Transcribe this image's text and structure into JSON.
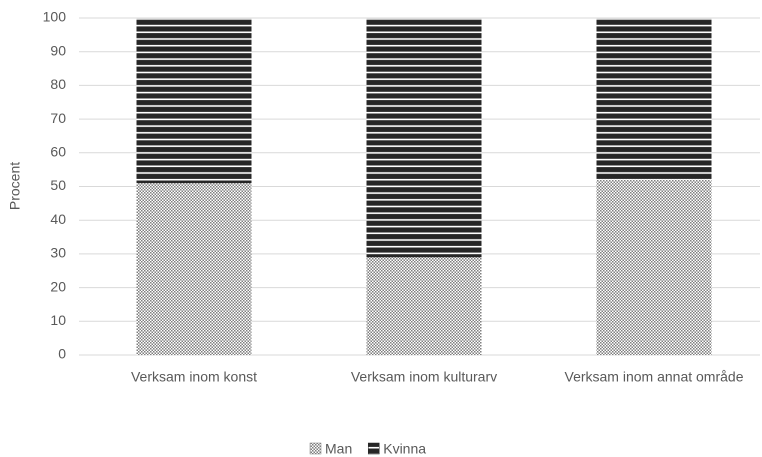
{
  "chart_data": {
    "type": "stacked_bar",
    "y_label": "Procent",
    "categories": [
      "Verksam inom konst",
      "Verksam inom kulturarv",
      "Verksam inom annat område"
    ],
    "series": [
      {
        "name": "Man",
        "color": "#7f7f7f",
        "values": [
          51,
          29,
          52
        ]
      },
      {
        "name": "Kvinna",
        "color": "#262626",
        "values": [
          49,
          71,
          48
        ]
      }
    ],
    "ylim": [
      0,
      100
    ],
    "yticks": [
      0,
      10,
      20,
      30,
      40,
      50,
      60,
      70,
      80,
      90,
      100
    ],
    "grid": true,
    "legend": "bottom"
  }
}
